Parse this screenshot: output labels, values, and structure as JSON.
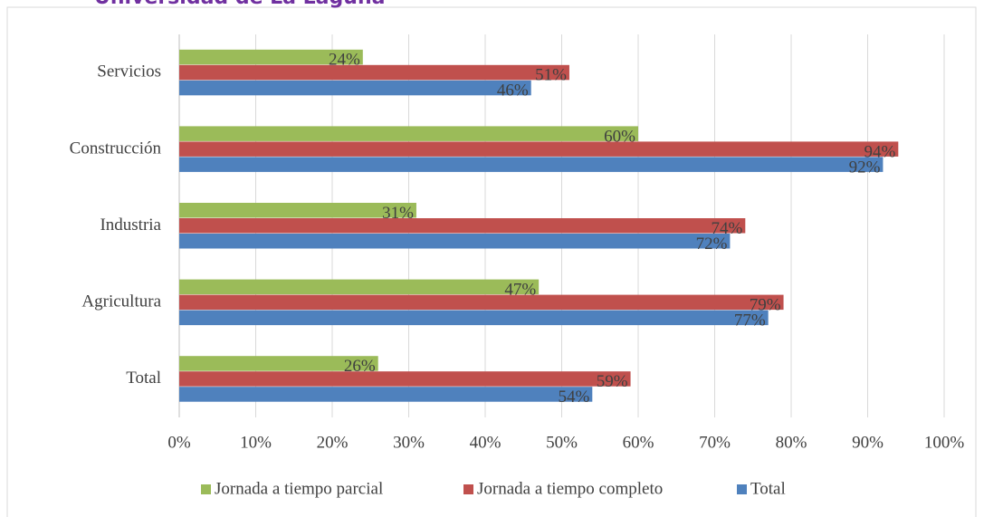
{
  "header_text": "Universidad de La Laguna",
  "chart_data": {
    "type": "hbar",
    "categories": [
      "Servicios",
      "Construcción",
      "Industria",
      "Agricultura",
      "Total"
    ],
    "series": [
      {
        "name": "Jornada a tiempo parcial",
        "color": "#9bbb59",
        "values": [
          24,
          60,
          31,
          47,
          26
        ],
        "value_labels": [
          "24%",
          "60%",
          "31%",
          "47%",
          "26%"
        ]
      },
      {
        "name": "Jornada a tiempo completo",
        "color": "#c0504d",
        "values": [
          51,
          94,
          74,
          79,
          59
        ],
        "value_labels": [
          "51%",
          "94%",
          "74%",
          "79%",
          "59%"
        ]
      },
      {
        "name": "Total",
        "color": "#4f81bd",
        "values": [
          46,
          92,
          72,
          77,
          54
        ],
        "value_labels": [
          "46%",
          "92%",
          "72%",
          "77%",
          "54%"
        ]
      }
    ],
    "xlim": [
      0,
      100
    ],
    "xticks": [
      {
        "value": 0,
        "label": "0%"
      },
      {
        "value": 10,
        "label": "10%"
      },
      {
        "value": 20,
        "label": "20%"
      },
      {
        "value": 30,
        "label": "30%"
      },
      {
        "value": 40,
        "label": "40%"
      },
      {
        "value": 50,
        "label": "50%"
      },
      {
        "value": 60,
        "label": "60%"
      },
      {
        "value": 70,
        "label": "70%"
      },
      {
        "value": 80,
        "label": "80%"
      },
      {
        "value": 90,
        "label": "90%"
      },
      {
        "value": 100,
        "label": "100%"
      }
    ],
    "grid": true,
    "legend": "bottom"
  }
}
